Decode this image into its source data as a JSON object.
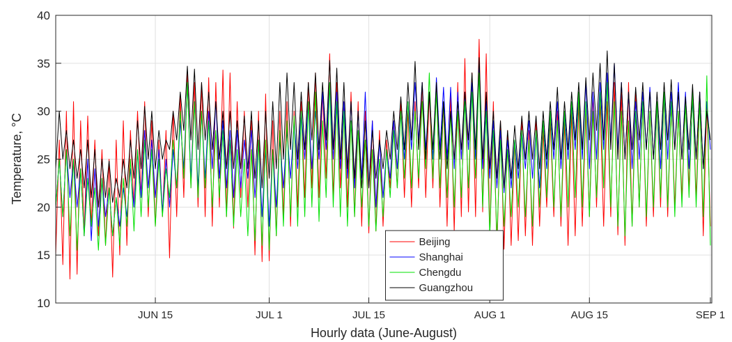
{
  "chart_data": {
    "type": "line",
    "x_label": "Hourly data (June-August)",
    "y_label": "Temperature, °C",
    "x": [
      0,
      0.5,
      1,
      1.5,
      2,
      2.5,
      3,
      3.5,
      4,
      4.5,
      5,
      5.5,
      6,
      6.5,
      7,
      7.5,
      8,
      8.5,
      9,
      9.5,
      10,
      10.5,
      11,
      11.5,
      12,
      12.5,
      13,
      13.5,
      14,
      14.5,
      15,
      15.5,
      16,
      16.5,
      17,
      17.5,
      18,
      18.5,
      19,
      19.5,
      20,
      20.5,
      21,
      21.5,
      22,
      22.5,
      23,
      23.5,
      24,
      24.5,
      25,
      25.5,
      26,
      26.5,
      27,
      27.5,
      28,
      28.5,
      29,
      29.5,
      30,
      30.5,
      31,
      31.5,
      32,
      32.5,
      33,
      33.5,
      34,
      34.5,
      35,
      35.5,
      36,
      36.5,
      37,
      37.5,
      38,
      38.5,
      39,
      39.5,
      40,
      40.5,
      41,
      41.5,
      42,
      42.5,
      43,
      43.5,
      44,
      44.5,
      45,
      45.5,
      46,
      46.5,
      47,
      47.5,
      48,
      48.5,
      49,
      49.5,
      50,
      50.5,
      51,
      51.5,
      52,
      52.5,
      53,
      53.5,
      54,
      54.5,
      55,
      55.5,
      56,
      56.5,
      57,
      57.5,
      58,
      58.5,
      59,
      59.5,
      60,
      60.5,
      61,
      61.5,
      62,
      62.5,
      63,
      63.5,
      64,
      64.5,
      65,
      65.5,
      66,
      66.5,
      67,
      67.5,
      68,
      68.5,
      69,
      69.5,
      70,
      70.5,
      71,
      71.5,
      72,
      72.5,
      73,
      73.5,
      74,
      74.5,
      75,
      75.5,
      76,
      76.5,
      77,
      77.5,
      78,
      78.5,
      79,
      79.5,
      80,
      80.5,
      81,
      81.5,
      82,
      82.5,
      83,
      83.5,
      84,
      84.5,
      85,
      85.5,
      86,
      86.5,
      87,
      87.5,
      88,
      88.5,
      89,
      89.5,
      90,
      90.5,
      91,
      91.5,
      92
    ],
    "xlim": [
      0,
      92.2
    ],
    "xticks": [
      {
        "value": 14,
        "label": "JUN 15"
      },
      {
        "value": 30,
        "label": "JUL 1"
      },
      {
        "value": 44,
        "label": "JUL 15"
      },
      {
        "value": 61,
        "label": "AUG 1"
      },
      {
        "value": 75,
        "label": "AUG 15"
      },
      {
        "value": 92,
        "label": "SEP 1"
      }
    ],
    "ylim": [
      10,
      40
    ],
    "yticks": [
      10,
      15,
      20,
      25,
      30,
      35,
      40
    ],
    "grid": true,
    "legend_location": "south",
    "series": [
      {
        "name": "Beijing",
        "color": "#ff0000",
        "values": [
          15,
          27,
          14,
          30,
          12.5,
          31,
          13,
          29,
          17,
          29.5,
          18,
          27,
          17,
          26,
          16,
          25,
          12.7,
          27,
          15,
          29,
          16,
          28,
          20,
          30,
          21,
          31,
          19,
          29,
          18,
          27,
          19,
          28,
          14.7,
          30,
          19,
          31.5,
          21,
          34,
          22,
          33,
          20,
          33,
          19,
          33.5,
          18,
          33,
          20,
          34.3,
          19,
          34,
          17.8,
          31,
          21,
          30,
          20,
          29,
          15,
          30,
          14.3,
          31.8,
          14.4,
          29,
          17,
          30,
          19,
          31,
          18,
          30,
          20,
          31,
          21,
          33,
          22,
          34,
          21,
          32,
          23,
          36,
          21,
          33,
          22,
          31,
          20,
          32,
          19,
          31,
          18,
          30,
          17.3,
          29,
          17.5,
          28,
          18,
          27,
          22,
          29,
          22,
          31,
          21,
          30,
          20,
          31,
          22,
          33,
          21,
          32,
          22,
          33,
          20,
          31,
          18,
          32,
          17.4,
          33,
          19,
          35.5,
          19.5,
          34,
          19,
          37.5,
          19.5,
          36,
          17,
          31,
          15.5,
          29,
          15.6,
          28,
          16,
          27,
          16.5,
          29,
          17,
          28,
          16,
          29,
          18,
          28,
          20,
          29,
          19,
          30,
          18,
          29,
          16,
          30,
          17,
          31,
          18,
          30,
          19,
          32,
          20,
          31,
          18,
          31,
          19,
          33,
          17.1,
          32,
          16,
          33,
          18,
          32,
          20,
          31,
          18,
          30,
          19,
          31,
          20,
          32,
          19,
          31,
          20,
          30,
          21,
          31,
          22,
          32,
          21,
          32,
          17,
          31,
          18
        ]
      },
      {
        "name": "Shanghai",
        "color": "#0000ff",
        "values": [
          20,
          25,
          19,
          26,
          21,
          25,
          20,
          24,
          17,
          25,
          16.5,
          24,
          18,
          23,
          19,
          22,
          17,
          21,
          18,
          22,
          19,
          24,
          20,
          26,
          21,
          28,
          22,
          27,
          21,
          26,
          19.5,
          25,
          20,
          26,
          22,
          29,
          24,
          33,
          23,
          31,
          22,
          30,
          23,
          30,
          24,
          31,
          23,
          29,
          22,
          28,
          21,
          28,
          22,
          27,
          23,
          28,
          21,
          27,
          19,
          26,
          18,
          26,
          20,
          27,
          22,
          28,
          23,
          29,
          24,
          30,
          25,
          31,
          24,
          30,
          25,
          32,
          26,
          33,
          25,
          32,
          24,
          31,
          23,
          31,
          22,
          30,
          23,
          32,
          22,
          29,
          20,
          27,
          21,
          26,
          23,
          29,
          24,
          30,
          25,
          31,
          26,
          33,
          27,
          33,
          26,
          32,
          25,
          33.5,
          26,
          32.5,
          25,
          32.5,
          24,
          32,
          25,
          32,
          26,
          33,
          25,
          35,
          24,
          31,
          23,
          29,
          22,
          28,
          21.5,
          27,
          22,
          27,
          23,
          28,
          24,
          29,
          23,
          28,
          22,
          29,
          24,
          30,
          25,
          31,
          24,
          30,
          25,
          31,
          26,
          32,
          25,
          33,
          24,
          32,
          25,
          33,
          26,
          34,
          27,
          35,
          26,
          33,
          25,
          32,
          24,
          31,
          25,
          32,
          26,
          32.5,
          25,
          31,
          24,
          32,
          25,
          32,
          26,
          33,
          25,
          32,
          24,
          31,
          25,
          32,
          24,
          31,
          26
        ]
      },
      {
        "name": "Chengdu",
        "color": "#00e000",
        "values": [
          20,
          25,
          19,
          26,
          17,
          25,
          15.5,
          24,
          17,
          23,
          18,
          22,
          15.5,
          23,
          16,
          22,
          17,
          21,
          16,
          23,
          18,
          25,
          17.5,
          26,
          19,
          27,
          20,
          26,
          18,
          25,
          19,
          24,
          21,
          27,
          22,
          30,
          23,
          33,
          22,
          31,
          21,
          30,
          22,
          29,
          20,
          28,
          21,
          28,
          19,
          27,
          18,
          26,
          19,
          25,
          17,
          26,
          16.5,
          27,
          16,
          27,
          15.5,
          26,
          17,
          28,
          18,
          29,
          19,
          29.5,
          18,
          30,
          19,
          31,
          20,
          32,
          18.5,
          29,
          21,
          33,
          20,
          31,
          19,
          30,
          18,
          29,
          19,
          28,
          20,
          27,
          18,
          26,
          17.5,
          25,
          19,
          26,
          21,
          28,
          22,
          30,
          23,
          31,
          22,
          30,
          23,
          31,
          24,
          34,
          23,
          32,
          22,
          31,
          21,
          30,
          20,
          30,
          21,
          31,
          22,
          32,
          23,
          34,
          20,
          30,
          17,
          28,
          16.8,
          27,
          18,
          26,
          19,
          27,
          20,
          28,
          19,
          27,
          18,
          28,
          20,
          29,
          21,
          30,
          20,
          29,
          19,
          30,
          20,
          31,
          21,
          32,
          20,
          31,
          19,
          30,
          21,
          32,
          22,
          33,
          20,
          31,
          18,
          30,
          17,
          29,
          18,
          30,
          20,
          31,
          19,
          30,
          20,
          31,
          21,
          32,
          20,
          31,
          19,
          30,
          20,
          31,
          21,
          32,
          20,
          31,
          19,
          33.7,
          16
        ]
      },
      {
        "name": "Guangzhou",
        "color": "#000000",
        "values": [
          24,
          30,
          25,
          28,
          24,
          27,
          23,
          26,
          22,
          27,
          21,
          26,
          20,
          25,
          21,
          24.8,
          20.5,
          23,
          21,
          25,
          22,
          27,
          23,
          29,
          24,
          30.5,
          25,
          30,
          24,
          28,
          25,
          27,
          26,
          30,
          27,
          32,
          28,
          34.7,
          27,
          34.4,
          26,
          33,
          27,
          32,
          26,
          31,
          25,
          30,
          24,
          30,
          24,
          29,
          24,
          29.5,
          24,
          30,
          23,
          29,
          22,
          30,
          23,
          31,
          24,
          33,
          25,
          34,
          26,
          33,
          25,
          32,
          26,
          33,
          27,
          34,
          26,
          33,
          27,
          35.3,
          26,
          34.5,
          25,
          33,
          24,
          31,
          23,
          30,
          22,
          29,
          22,
          28,
          23,
          27,
          24,
          28,
          25,
          30,
          26,
          31.5,
          26,
          33,
          27,
          35.2,
          26,
          33,
          25,
          32,
          26,
          33,
          25,
          31,
          24,
          30,
          25,
          31,
          26,
          32,
          27,
          34,
          26,
          35.6,
          25,
          32,
          24,
          30,
          23,
          29,
          22,
          28,
          23,
          28.5,
          24,
          29.5,
          25,
          30,
          25,
          29.5,
          24,
          30,
          25,
          31,
          26,
          32.5,
          25,
          31,
          26,
          32,
          27,
          33,
          26,
          33.5,
          27,
          34,
          28,
          35,
          27,
          36.3,
          26,
          35,
          25,
          33,
          25,
          32,
          26,
          32.5,
          27,
          33,
          26,
          32,
          25,
          32,
          26,
          33,
          27,
          33.3,
          26,
          32,
          25,
          31.5,
          26,
          32.8,
          25,
          32,
          24,
          30,
          27
        ]
      }
    ]
  }
}
